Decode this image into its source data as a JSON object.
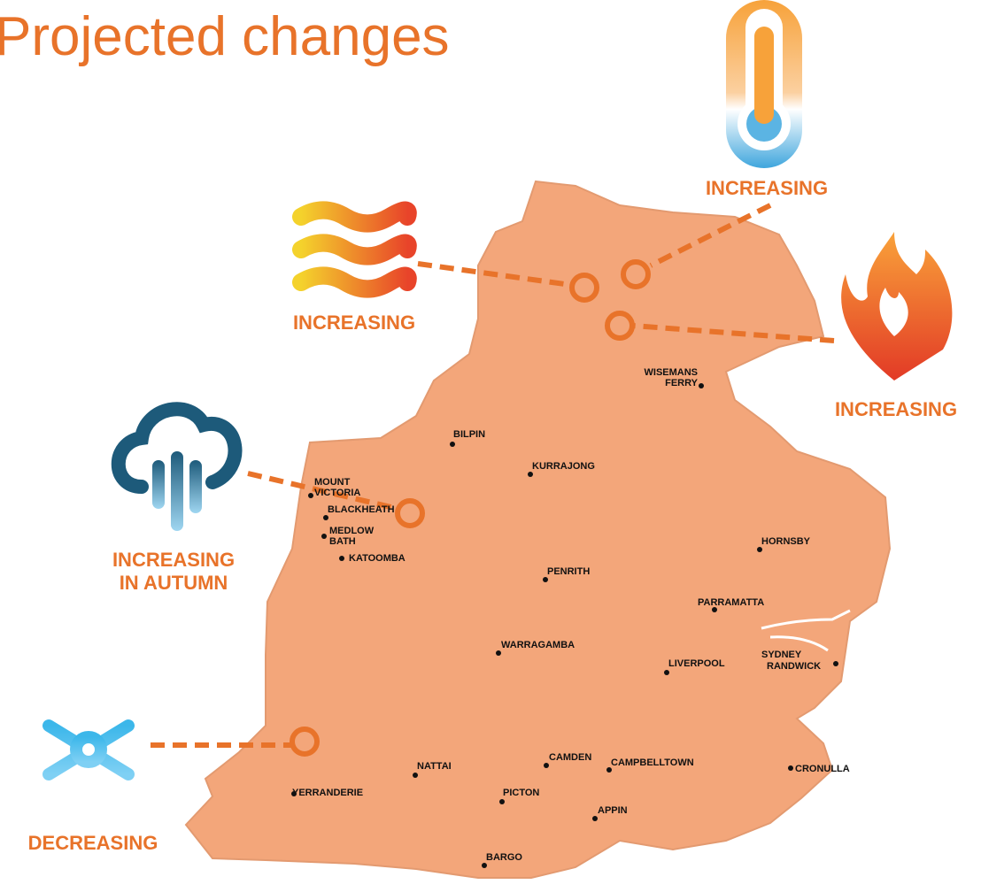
{
  "title": "Projected changes",
  "indicators": [
    {
      "lines": [
        "INCREASING"
      ]
    },
    {
      "lines": [
        "INCREASING"
      ]
    },
    {
      "lines": [
        "INCREASING"
      ]
    },
    {
      "lines": [
        "INCREASING",
        "IN AUTUMN"
      ]
    },
    {
      "lines": [
        "DECREASING"
      ]
    }
  ],
  "places": [
    {
      "lines": [
        "WISEMANS",
        "FERRY"
      ]
    },
    {
      "lines": [
        "BILPIN"
      ]
    },
    {
      "lines": [
        "KURRAJONG"
      ]
    },
    {
      "lines": [
        "MOUNT",
        "VICTORIA"
      ]
    },
    {
      "lines": [
        "BLACKHEATH"
      ]
    },
    {
      "lines": [
        "MEDLOW",
        "BATH"
      ]
    },
    {
      "lines": [
        "KATOOMBA"
      ]
    },
    {
      "lines": [
        "HORNSBY"
      ]
    },
    {
      "lines": [
        "PENRITH"
      ]
    },
    {
      "lines": [
        "PARRAMATTA"
      ]
    },
    {
      "lines": [
        "WARRAGAMBA"
      ]
    },
    {
      "lines": [
        "SYDNEY"
      ]
    },
    {
      "lines": [
        "RANDWICK"
      ]
    },
    {
      "lines": [
        "LIVERPOOL"
      ]
    },
    {
      "lines": [
        "CAMDEN"
      ]
    },
    {
      "lines": [
        "CAMPBELLTOWN"
      ]
    },
    {
      "lines": [
        "CRONULLA"
      ]
    },
    {
      "lines": [
        "NATTAI"
      ]
    },
    {
      "lines": [
        "YERRANDERIE"
      ]
    },
    {
      "lines": [
        "PICTON"
      ]
    },
    {
      "lines": [
        "APPIN"
      ]
    },
    {
      "lines": [
        "BARGO"
      ]
    }
  ]
}
